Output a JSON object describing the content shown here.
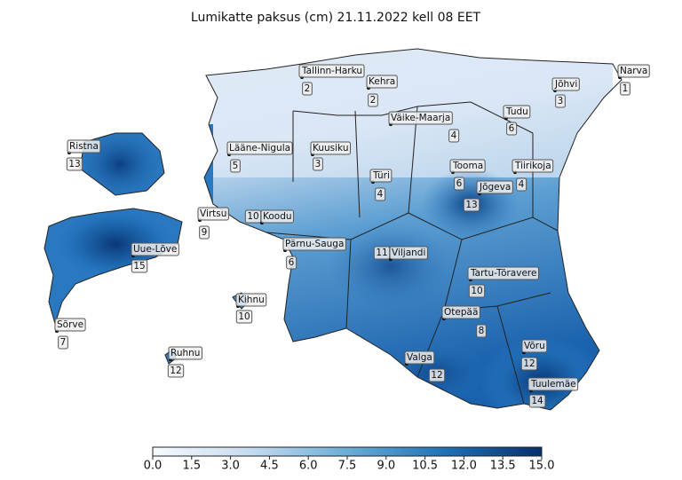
{
  "title": "Lumikatte paksus (cm) 21.11.2022 kell 08 EET",
  "stations": [
    {
      "name": "Tallinn-Harku",
      "value": 2
    },
    {
      "name": "Kehra",
      "value": 2
    },
    {
      "name": "Narva",
      "value": 1
    },
    {
      "name": "Jõhvi",
      "value": 3
    },
    {
      "name": "Väike-Maarja",
      "value": 4
    },
    {
      "name": "Tudu",
      "value": 6
    },
    {
      "name": "Ristna",
      "value": 13
    },
    {
      "name": "Lääne-Nigula",
      "value": 5
    },
    {
      "name": "Kuusiku",
      "value": 3
    },
    {
      "name": "Türi",
      "value": 4
    },
    {
      "name": "Tooma",
      "value": 6
    },
    {
      "name": "Tiirikoja",
      "value": 4
    },
    {
      "name": "Jõgeva",
      "value": 13
    },
    {
      "name": "Virtsu",
      "value": 9
    },
    {
      "name": "Koodu",
      "value": 10
    },
    {
      "name": "Pärnu-Sauga",
      "value": 6
    },
    {
      "name": "Uue-Lõve",
      "value": 15
    },
    {
      "name": "Viljandi",
      "value": 11
    },
    {
      "name": "Tartu-Tõravere",
      "value": 10
    },
    {
      "name": "Kihnu",
      "value": 10
    },
    {
      "name": "Otepää",
      "value": 8
    },
    {
      "name": "Sõrve",
      "value": 7
    },
    {
      "name": "Võru",
      "value": 12
    },
    {
      "name": "Valga",
      "value": 12
    },
    {
      "name": "Ruhnu",
      "value": 12
    },
    {
      "name": "Tuulemäe",
      "value": 14
    }
  ],
  "colorbar": {
    "colors": [
      "#f7fbff",
      "#c6dbef",
      "#6baed6",
      "#2171b5",
      "#08306b"
    ],
    "ticks": [
      {
        "value": 0,
        "label": "0.0"
      },
      {
        "value": 1.5,
        "label": "1.5"
      },
      {
        "value": 3,
        "label": "3.0"
      },
      {
        "value": 4.5,
        "label": "4.5"
      },
      {
        "value": 6,
        "label": "6.0"
      },
      {
        "value": 7.5,
        "label": "7.5"
      },
      {
        "value": 9,
        "label": "9.0"
      },
      {
        "value": 10.5,
        "label": "10.5"
      },
      {
        "value": 12,
        "label": "12.0"
      },
      {
        "value": 13.5,
        "label": "13.5"
      },
      {
        "value": 15,
        "label": "15.0"
      }
    ]
  }
}
